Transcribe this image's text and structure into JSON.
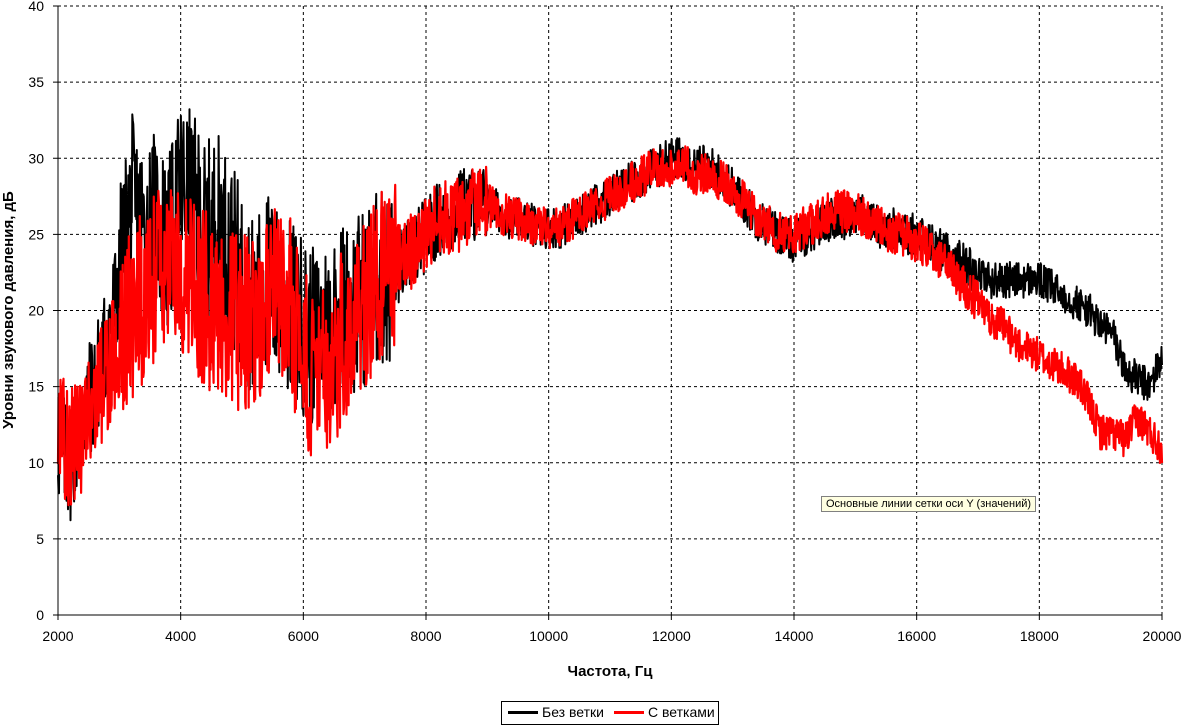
{
  "chart_data": {
    "type": "line",
    "title": "",
    "xlabel": "Частота, Гц",
    "ylabel": "Уровни звукового давления, дБ",
    "xlim": [
      2000,
      20000
    ],
    "ylim": [
      0,
      40
    ],
    "xticks": [
      2000,
      4000,
      6000,
      8000,
      10000,
      12000,
      14000,
      16000,
      18000,
      20000
    ],
    "yticks": [
      0,
      5,
      10,
      15,
      20,
      25,
      30,
      35,
      40
    ],
    "grid": true,
    "legend_position": "bottom",
    "series": [
      {
        "name": "Без ветки",
        "color": "#000000",
        "x": [
          2000,
          2200,
          2400,
          2600,
          2800,
          3000,
          3200,
          3400,
          3600,
          3800,
          4000,
          4200,
          4400,
          4600,
          4800,
          5000,
          5200,
          5400,
          5600,
          5800,
          6000,
          6200,
          6400,
          6600,
          6800,
          7000,
          7200,
          7400,
          7600,
          7800,
          8000,
          8200,
          8400,
          8600,
          8800,
          9000,
          9200,
          9400,
          9600,
          9800,
          10000,
          10200,
          10400,
          10600,
          10800,
          11000,
          11200,
          11400,
          11600,
          11800,
          12000,
          12200,
          12400,
          12600,
          12800,
          13000,
          13200,
          13400,
          13600,
          13800,
          14000,
          14200,
          14400,
          14600,
          14800,
          15000,
          15200,
          15400,
          15600,
          15800,
          16000,
          16200,
          16400,
          16600,
          16800,
          17000,
          17200,
          17400,
          17600,
          17800,
          18000,
          18200,
          18400,
          18600,
          18800,
          19000,
          19200,
          19400,
          19600,
          19800,
          20000
        ],
        "y": [
          11,
          10,
          13,
          15,
          18,
          22,
          27,
          25,
          26,
          24,
          28,
          27,
          25,
          26,
          24,
          22,
          20,
          22,
          21,
          20,
          19,
          18,
          19,
          20,
          20,
          21,
          22,
          22,
          23,
          24,
          25,
          26,
          26,
          27,
          27,
          27,
          26.5,
          26,
          26,
          25.5,
          25.5,
          25.5,
          26,
          26.5,
          27,
          27.5,
          28,
          28.5,
          29,
          29.5,
          30,
          30,
          29.5,
          29.5,
          29,
          28,
          27,
          26,
          25.5,
          25,
          24.5,
          25,
          25.5,
          26,
          26,
          26.5,
          26,
          25.5,
          25.5,
          25,
          25,
          24.5,
          24,
          23.5,
          23,
          22.5,
          22,
          22,
          22,
          22,
          22,
          21.5,
          21,
          20.5,
          20,
          19,
          18.5,
          16,
          15.5,
          15,
          17
        ]
      },
      {
        "name": "С ветками",
        "color": "#ff0000",
        "x": [
          2000,
          2200,
          2400,
          2600,
          2800,
          3000,
          3200,
          3400,
          3600,
          3800,
          4000,
          4200,
          4400,
          4600,
          4800,
          5000,
          5200,
          5400,
          5600,
          5800,
          6000,
          6200,
          6400,
          6600,
          6800,
          7000,
          7200,
          7400,
          7600,
          7800,
          8000,
          8200,
          8400,
          8600,
          8800,
          9000,
          9200,
          9400,
          9600,
          9800,
          10000,
          10200,
          10400,
          10600,
          10800,
          11000,
          11200,
          11400,
          11600,
          11800,
          12000,
          12200,
          12400,
          12600,
          12800,
          13000,
          13200,
          13400,
          13600,
          13800,
          14000,
          14200,
          14400,
          14600,
          14800,
          15000,
          15200,
          15400,
          15600,
          15800,
          16000,
          16200,
          16400,
          16600,
          16800,
          17000,
          17200,
          17400,
          17600,
          17800,
          18000,
          18200,
          18400,
          18600,
          18800,
          19000,
          19200,
          19400,
          19600,
          19800,
          20000
        ],
        "y": [
          12,
          11,
          12,
          14,
          16,
          18,
          20,
          21,
          22,
          22,
          23,
          22,
          21,
          20,
          20,
          19,
          19,
          20,
          21,
          20,
          17,
          15,
          16,
          18,
          20,
          21,
          22,
          23,
          23.5,
          24,
          25,
          26,
          26,
          26.5,
          27,
          27,
          26.5,
          26,
          26,
          25.5,
          25.5,
          25.5,
          26,
          26.5,
          27,
          27.5,
          28,
          28.5,
          29,
          29.5,
          29.5,
          29.5,
          29,
          29,
          28.5,
          28,
          27,
          26,
          25.5,
          25,
          25,
          25.5,
          26,
          26.5,
          26.5,
          26.5,
          26,
          25.5,
          25,
          25,
          24.5,
          24,
          23.5,
          22.5,
          21.5,
          20.5,
          19.5,
          19,
          18,
          17.5,
          17,
          16.5,
          16,
          15.5,
          14,
          12,
          12,
          11.5,
          13,
          12,
          11
        ]
      }
    ]
  },
  "tooltip": "Основные линии сетки оси Y (значений)"
}
